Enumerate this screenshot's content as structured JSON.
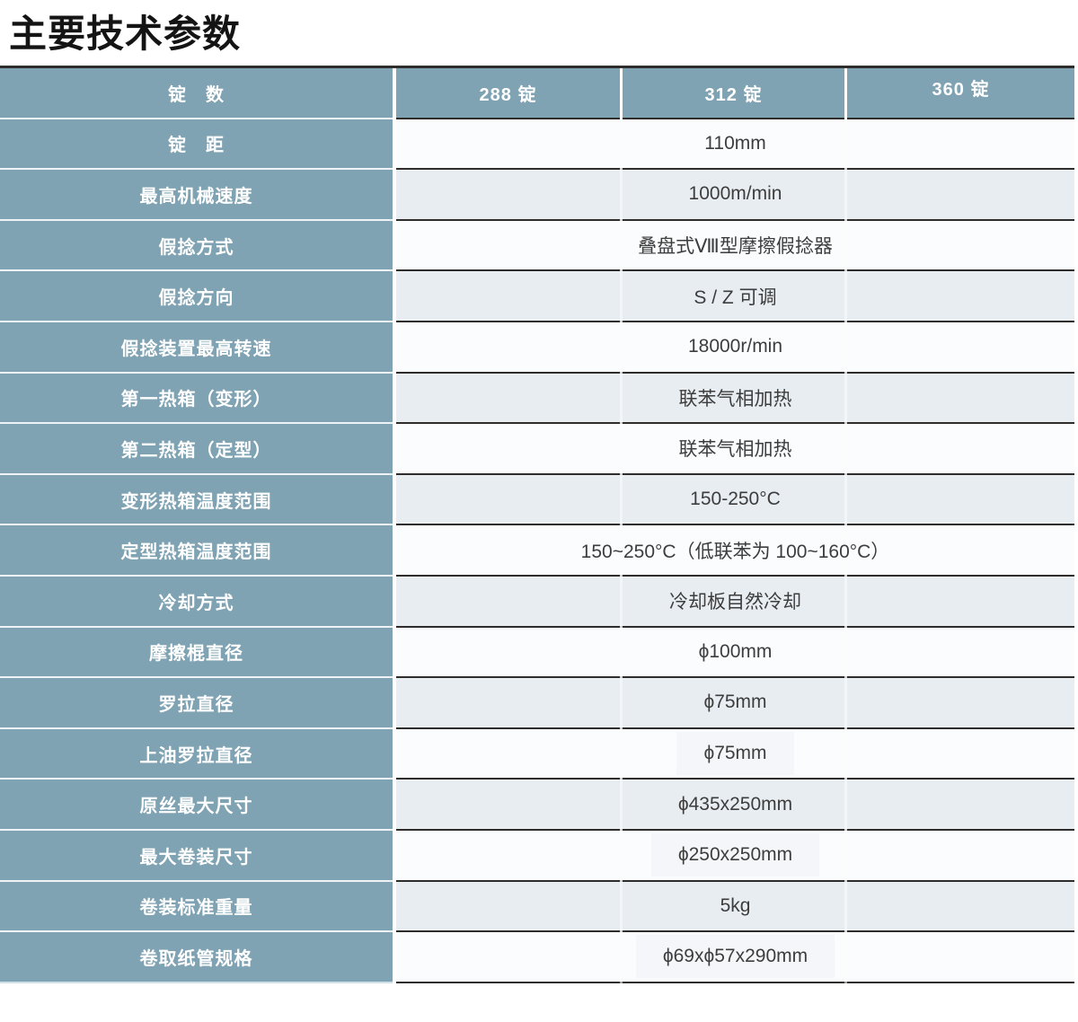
{
  "page": {
    "title": "主要技术参数"
  },
  "table": {
    "header": {
      "label": "锭　数",
      "columns": [
        "288 锭",
        "312 锭",
        "360 锭"
      ]
    },
    "rows": [
      {
        "label": "锭　距",
        "value": "110mm"
      },
      {
        "label": "最高机械速度",
        "value": "1000m/min"
      },
      {
        "label": "假捻方式",
        "value": "叠盘式Ⅷ型摩擦假捻器"
      },
      {
        "label": "假捻方向",
        "value": "S / Z 可调"
      },
      {
        "label": "假捻装置最高转速",
        "value": "18000r/min"
      },
      {
        "label": "第一热箱（变形）",
        "value": "联苯气相加热"
      },
      {
        "label": "第二热箱（定型）",
        "value": "联苯气相加热"
      },
      {
        "label": "变形热箱温度范围",
        "value": "150-250°C"
      },
      {
        "label": "定型热箱温度范围",
        "value": "150~250°C（低联苯为 100~160°C）"
      },
      {
        "label": "冷却方式",
        "value": "冷却板自然冷却"
      },
      {
        "label": "摩擦棍直径",
        "value": "ϕ100mm"
      },
      {
        "label": "罗拉直径",
        "value": "ϕ75mm"
      },
      {
        "label": "上油罗拉直径",
        "value": "ϕ75mm",
        "patch": true
      },
      {
        "label": "原丝最大尺寸",
        "value": "ϕ435x250mm"
      },
      {
        "label": "最大卷装尺寸",
        "value": "ϕ250x250mm",
        "patch": true
      },
      {
        "label": "卷装标准重量",
        "value": "5kg"
      },
      {
        "label": "卷取纸管规格",
        "value": "ϕ69xϕ57x290mm",
        "patch": true
      }
    ],
    "colors": {
      "header_blue": "#7fa3b3",
      "row_light": "#e8edf1",
      "row_white": "#fbfcfd",
      "border_dark": "#2e2d2b",
      "title_text": "#141414",
      "value_text": "#3d3d3d",
      "patch_bg": "#f4f6f9"
    }
  }
}
